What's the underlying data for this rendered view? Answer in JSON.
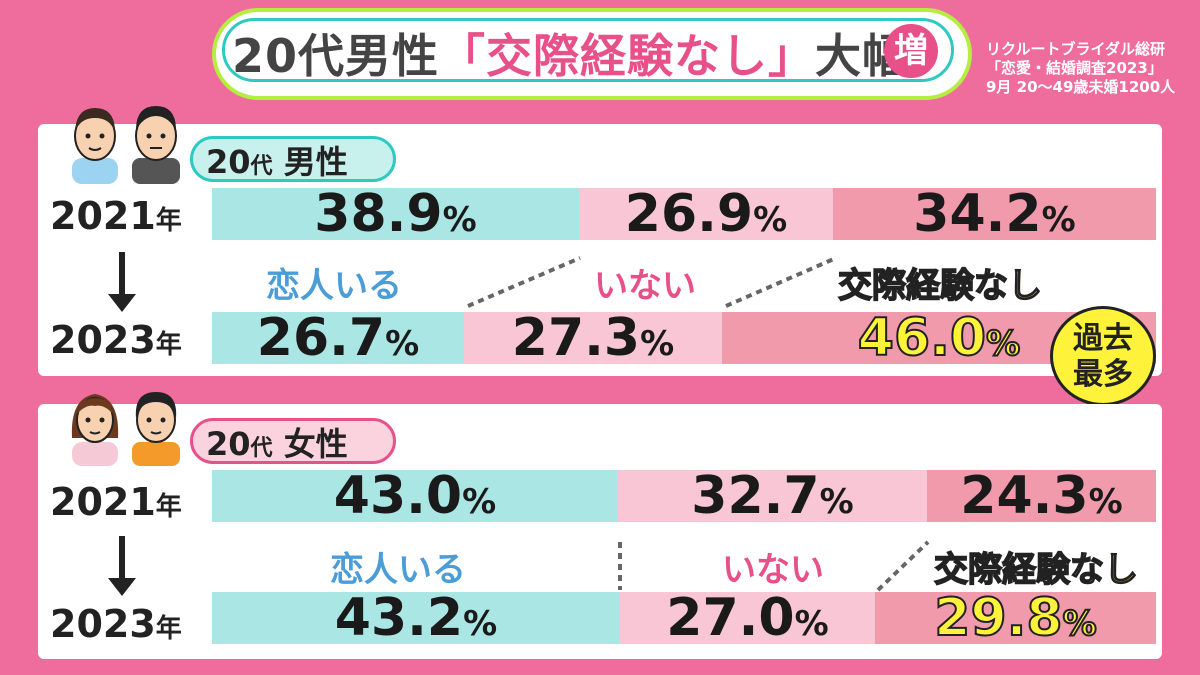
{
  "colors": {
    "bg": "#ee6d9c",
    "partner": "#a9e6e4",
    "none": "#f8c6d4",
    "never": "#f19aac",
    "accent": "#e8508a",
    "highlight": "#fff23a"
  },
  "header": {
    "title_part1": "20代男性",
    "title_part2": "「交際経験なし」",
    "title_part3": "大幅",
    "badge": "増"
  },
  "source": {
    "line1": "リクルートブライダル総研",
    "line2": "「恋愛・結婚調査2023」",
    "line3": "9月 20〜49歳未婚1200人"
  },
  "record_badge": {
    "line1": "過去",
    "line2": "最多"
  },
  "icons": [
    "man-face-icon",
    "man-face-icon",
    "woman-face-icon",
    "woman-face-icon",
    "down-arrow-icon"
  ],
  "chart_data": [
    {
      "type": "bar",
      "group_label_main": "20",
      "group_label_small": "代",
      "group_label_rest": "男性",
      "categories": [
        "恋人いる",
        "いない",
        "交際経験なし"
      ],
      "years": [
        {
          "num": "2021",
          "unit": "年"
        },
        {
          "num": "2023",
          "unit": "年"
        }
      ],
      "series": [
        {
          "year": "2021",
          "values": [
            38.9,
            26.9,
            34.2
          ],
          "labels": [
            "38.9",
            "26.9",
            "34.2"
          ]
        },
        {
          "year": "2023",
          "values": [
            26.7,
            27.3,
            46.0
          ],
          "labels": [
            "26.7",
            "27.3",
            "46.0"
          ]
        }
      ],
      "unit": "%"
    },
    {
      "type": "bar",
      "group_label_main": "20",
      "group_label_small": "代",
      "group_label_rest": "女性",
      "categories": [
        "恋人いる",
        "いない",
        "交際経験なし"
      ],
      "years": [
        {
          "num": "2021",
          "unit": "年"
        },
        {
          "num": "2023",
          "unit": "年"
        }
      ],
      "series": [
        {
          "year": "2021",
          "values": [
            43.0,
            32.7,
            24.3
          ],
          "labels": [
            "43.0",
            "32.7",
            "24.3"
          ]
        },
        {
          "year": "2023",
          "values": [
            43.2,
            27.0,
            29.8
          ],
          "labels": [
            "43.2",
            "27.0",
            "29.8"
          ]
        }
      ],
      "unit": "%"
    }
  ]
}
